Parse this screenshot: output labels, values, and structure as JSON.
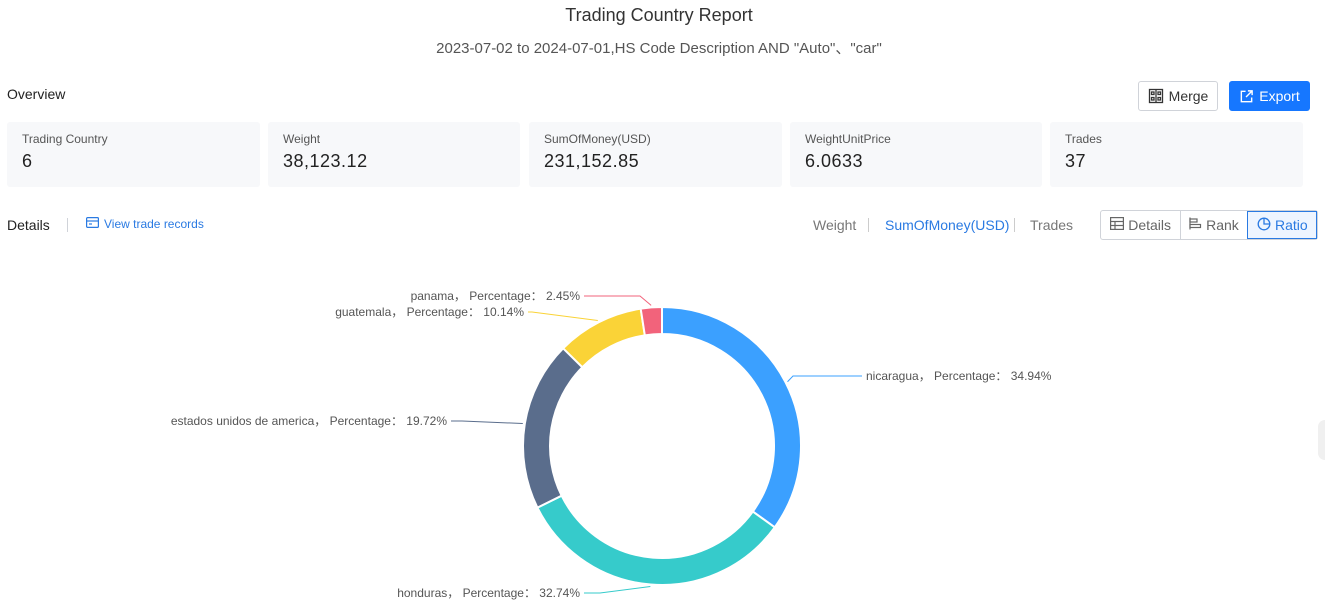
{
  "report": {
    "title": "Trading Country Report",
    "subtitle": "2023-07-02 to 2024-07-01,HS Code Description AND \"Auto\"、\"car\""
  },
  "overview": {
    "label": "Overview",
    "merge_label": "Merge",
    "export_label": "Export",
    "stats": [
      {
        "label": "Trading Country",
        "value": "6"
      },
      {
        "label": "Weight",
        "value": "38,123.12"
      },
      {
        "label": "SumOfMoney(USD)",
        "value": "231,152.85"
      },
      {
        "label": "WeightUnitPrice",
        "value": "6.0633"
      },
      {
        "label": "Trades",
        "value": "37"
      }
    ]
  },
  "details": {
    "label": "Details",
    "view_records_label": "View trade records",
    "metrics": [
      "Weight",
      "SumOfMoney(USD)",
      "Trades"
    ],
    "active_metric": "SumOfMoney(USD)",
    "views": [
      "Details",
      "Rank",
      "Ratio"
    ],
    "active_view": "Ratio"
  },
  "chart_data": {
    "type": "pie",
    "variant": "donut",
    "label_prefix": "Percentage：",
    "slices": [
      {
        "name": "nicaragua",
        "value": 34.94,
        "color": "#3ba0ff"
      },
      {
        "name": "honduras",
        "value": 32.74,
        "color": "#36cbcb"
      },
      {
        "name": "estados unidos de america",
        "value": 19.72,
        "color": "#5a6d8c"
      },
      {
        "name": "guatemala",
        "value": 10.14,
        "color": "#fad337"
      },
      {
        "name": "panama",
        "value": 2.45,
        "color": "#f2637b"
      }
    ]
  },
  "colors": {
    "accent": "#1677ff",
    "link": "#2a7ae2"
  }
}
